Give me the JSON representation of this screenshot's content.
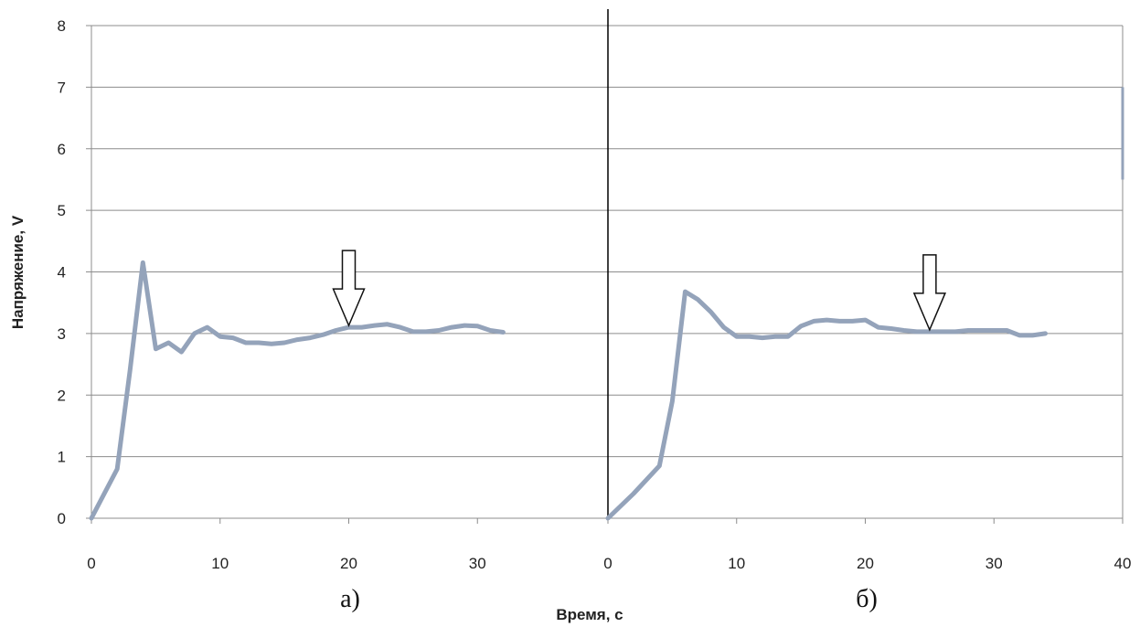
{
  "chart_data": {
    "type": "line",
    "ylabel": "Напряжение, V",
    "xlabel": "Время, с",
    "ylim": [
      0,
      8
    ],
    "yticks": [
      "0",
      "1",
      "2",
      "3",
      "4",
      "5",
      "6",
      "7",
      "8"
    ],
    "grid": true,
    "series_color": "#94a3ba",
    "panels": [
      {
        "label": "а)",
        "xlim": [
          0,
          40
        ],
        "xticks": [
          "0",
          "10",
          "20",
          "30"
        ],
        "marker_x": 20,
        "series": [
          {
            "x": [
              0,
              1,
              2,
              3,
              4,
              5,
              6,
              7,
              8,
              9,
              10,
              11,
              12,
              13,
              14,
              15,
              16,
              17,
              18,
              19,
              20,
              21,
              22,
              23,
              24,
              25,
              26,
              27,
              28,
              29,
              30,
              31,
              32
            ],
            "y": [
              0,
              0.4,
              0.8,
              2.4,
              4.15,
              2.75,
              2.85,
              2.7,
              3.0,
              3.1,
              2.95,
              2.93,
              2.85,
              2.85,
              2.83,
              2.85,
              2.9,
              2.93,
              2.98,
              3.05,
              3.1,
              3.1,
              3.13,
              3.15,
              3.1,
              3.03,
              3.03,
              3.05,
              3.1,
              3.13,
              3.12,
              3.05,
              3.02
            ]
          }
        ]
      },
      {
        "label": "б)",
        "xlim": [
          0,
          40
        ],
        "xticks": [
          "0",
          "10",
          "20",
          "30",
          "40"
        ],
        "marker_x": 25,
        "series": [
          {
            "x": [
              0,
              2,
              4,
              5,
              6,
              7,
              8,
              9,
              10,
              11,
              12,
              13,
              14,
              15,
              16,
              17,
              18,
              19,
              20,
              21,
              22,
              23,
              24,
              25,
              26,
              27,
              28,
              29,
              30,
              31,
              32,
              33,
              34
            ],
            "y": [
              0,
              0.4,
              0.85,
              1.9,
              3.68,
              3.55,
              3.35,
              3.1,
              2.95,
              2.95,
              2.93,
              2.95,
              2.95,
              3.12,
              3.2,
              3.22,
              3.2,
              3.2,
              3.22,
              3.1,
              3.08,
              3.05,
              3.03,
              3.03,
              3.03,
              3.03,
              3.05,
              3.05,
              3.05,
              3.05,
              2.97,
              2.97,
              3.0
            ]
          }
        ]
      }
    ]
  }
}
